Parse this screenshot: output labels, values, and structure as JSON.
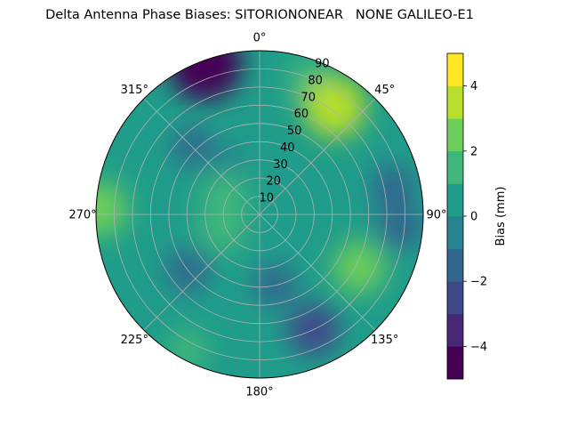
{
  "title": "Delta Antenna Phase Biases: SITORIONONEAR   NONE GALILEO-E1",
  "chart_data": {
    "type": "heatmap",
    "projection": "polar",
    "title": "Delta Antenna Phase Biases: SITORIONONEAR   NONE GALILEO-E1",
    "theta_direction": "clockwise",
    "theta_zero": "top",
    "angle_ticks": [
      0,
      45,
      90,
      135,
      180,
      225,
      270,
      315
    ],
    "angle_tick_labels": [
      "0°",
      "45°",
      "90°",
      "135°",
      "180°",
      "225°",
      "270°",
      "315°"
    ],
    "radial_range": [
      0,
      90
    ],
    "radial_ticks": [
      10,
      20,
      30,
      40,
      50,
      60,
      70,
      80,
      90
    ],
    "radial_tick_labels": [
      "10",
      "20",
      "30",
      "40",
      "50",
      "60",
      "70",
      "80",
      "90"
    ],
    "grid": true,
    "colormap": "viridis",
    "levels": [
      -5,
      -4.5,
      -4,
      -3.5,
      -3,
      -2.5,
      -2,
      -1.5,
      -1,
      -0.5,
      0,
      0.5,
      1,
      1.5,
      2,
      2.5,
      3,
      3.5,
      4,
      4.5,
      5
    ],
    "level_colors": [
      "#440154",
      "#482777",
      "#3f4a8a",
      "#31678e",
      "#26838f",
      "#1f9d8a",
      "#40b77a",
      "#6cce5a",
      "#b6de2b",
      "#fee825"
    ],
    "colorbar": {
      "label": "Bias (mm)",
      "range": [
        -5,
        5
      ],
      "ticks": [
        -4,
        -2,
        0,
        2,
        4
      ],
      "tick_labels": [
        "−4",
        "−2",
        "0",
        "2",
        "4"
      ]
    },
    "field_features": [
      {
        "azimuth": 340,
        "zenith": 88,
        "bias": -4.2
      },
      {
        "azimuth": 20,
        "zenith": 78,
        "bias": 1.5
      },
      {
        "azimuth": 35,
        "zenith": 72,
        "bias": 3.1
      },
      {
        "azimuth": 78,
        "zenith": 75,
        "bias": -1.5
      },
      {
        "azimuth": 95,
        "zenith": 78,
        "bias": -1.8
      },
      {
        "azimuth": 118,
        "zenith": 62,
        "bias": 2.2
      },
      {
        "azimuth": 155,
        "zenith": 70,
        "bias": -2.2
      },
      {
        "azimuth": 168,
        "zenith": 40,
        "bias": -1.4
      },
      {
        "azimuth": 208,
        "zenith": 85,
        "bias": 1.2
      },
      {
        "azimuth": 232,
        "zenith": 50,
        "bias": -1.5
      },
      {
        "azimuth": 250,
        "zenith": 22,
        "bias": 1.9
      },
      {
        "azimuth": 272,
        "zenith": 88,
        "bias": 2.5
      },
      {
        "azimuth": 300,
        "zenith": 22,
        "bias": 1.7
      },
      {
        "azimuth": 315,
        "zenith": 52,
        "bias": -1.2
      },
      {
        "azimuth": 330,
        "zenith": 35,
        "bias": -0.4
      }
    ]
  }
}
